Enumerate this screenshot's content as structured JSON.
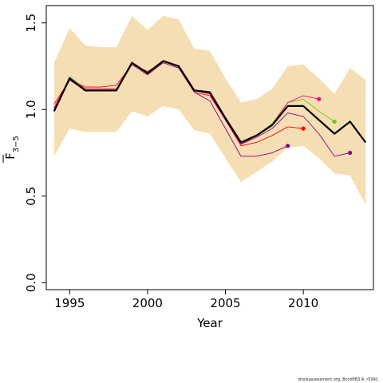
{
  "chart_data": {
    "type": "line",
    "xlabel": "Year",
    "ylabel_main": "F",
    "ylabel_sub": "3−5",
    "xlim": [
      1993.5,
      2014.5
    ],
    "ylim": [
      -0.04,
      1.6
    ],
    "x_ticks": [
      1995,
      2000,
      2005,
      2010
    ],
    "y_ticks": [
      0.0,
      0.5,
      1.0,
      1.5
    ],
    "y_tick_labels": [
      "0.0",
      "0.5",
      "1.0",
      "1.5"
    ],
    "grid": false,
    "colors": {
      "band": "#f5deb3",
      "main": "#000000",
      "peel_2012": "#66cc00",
      "peel_2011": "#ff0080",
      "peel_2010": "#ff0000",
      "peel_2009": "#800080",
      "peel_2013": "#8b008b"
    },
    "confidence_band": {
      "x": [
        1994,
        1995,
        1996,
        1997,
        1998,
        1999,
        2000,
        2001,
        2002,
        2003,
        2004,
        2005,
        2006,
        2007,
        2008,
        2009,
        2010,
        2011,
        2012,
        2013,
        2014
      ],
      "upper": [
        1.27,
        1.47,
        1.37,
        1.36,
        1.36,
        1.54,
        1.46,
        1.54,
        1.52,
        1.35,
        1.34,
        1.18,
        1.04,
        1.06,
        1.12,
        1.25,
        1.26,
        1.18,
        1.09,
        1.24,
        1.17
      ],
      "lower": [
        0.73,
        0.89,
        0.87,
        0.87,
        0.87,
        0.99,
        0.96,
        1.02,
        1.0,
        0.88,
        0.86,
        0.72,
        0.58,
        0.64,
        0.7,
        0.78,
        0.79,
        0.72,
        0.63,
        0.62,
        0.45
      ]
    },
    "series": [
      {
        "color_key": "main",
        "width": 2.2,
        "end_marker": false,
        "x": [
          1994,
          1995,
          1996,
          1997,
          1998,
          1999,
          2000,
          2001,
          2002,
          2003,
          2004,
          2005,
          2006,
          2007,
          2008,
          2009,
          2010,
          2011,
          2012,
          2013,
          2014
        ],
        "y": [
          0.99,
          1.18,
          1.11,
          1.11,
          1.11,
          1.27,
          1.21,
          1.28,
          1.25,
          1.11,
          1.1,
          0.95,
          0.81,
          0.85,
          0.91,
          1.02,
          1.02,
          0.94,
          0.86,
          0.93,
          0.81
        ]
      },
      {
        "color_key": "peel_2012",
        "width": 0.9,
        "end_marker": true,
        "x": [
          1994,
          1995,
          1996,
          1997,
          1998,
          1999,
          2000,
          2001,
          2002,
          2003,
          2004,
          2005,
          2006,
          2007,
          2008,
          2009,
          2010,
          2011,
          2012
        ],
        "y": [
          1.0,
          1.19,
          1.12,
          1.12,
          1.12,
          1.27,
          1.21,
          1.28,
          1.25,
          1.11,
          1.1,
          0.95,
          0.81,
          0.85,
          0.92,
          1.04,
          1.06,
          0.99,
          0.93
        ]
      },
      {
        "color_key": "peel_2011",
        "width": 0.9,
        "end_marker": true,
        "x": [
          1994,
          1995,
          1996,
          1997,
          1998,
          1999,
          2000,
          2001,
          2002,
          2003,
          2004,
          2005,
          2006,
          2007,
          2008,
          2009,
          2010,
          2011
        ],
        "y": [
          1.01,
          1.18,
          1.12,
          1.12,
          1.12,
          1.27,
          1.21,
          1.28,
          1.25,
          1.11,
          1.09,
          0.94,
          0.8,
          0.85,
          0.91,
          1.04,
          1.08,
          1.06
        ]
      },
      {
        "color_key": "peel_2010",
        "width": 0.9,
        "end_marker": true,
        "x": [
          1994,
          1995,
          1996,
          1997,
          1998,
          1999,
          2000,
          2001,
          2002,
          2003,
          2004,
          2005,
          2006,
          2007,
          2008,
          2009,
          2010
        ],
        "y": [
          1.03,
          1.17,
          1.13,
          1.13,
          1.14,
          1.26,
          1.22,
          1.27,
          1.24,
          1.1,
          1.08,
          0.94,
          0.79,
          0.81,
          0.85,
          0.9,
          0.89
        ]
      },
      {
        "color_key": "peel_2009",
        "width": 0.9,
        "end_marker": true,
        "x": [
          1994,
          1995,
          1996,
          1997,
          1998,
          1999,
          2000,
          2001,
          2002,
          2003,
          2004,
          2005,
          2006,
          2007,
          2008,
          2009
        ],
        "y": [
          1.0,
          1.17,
          1.11,
          1.11,
          1.11,
          1.26,
          1.2,
          1.27,
          1.24,
          1.1,
          1.05,
          0.89,
          0.73,
          0.73,
          0.75,
          0.79
        ]
      },
      {
        "color_key": "peel_2013",
        "width": 0.9,
        "end_marker": true,
        "x": [
          1994,
          1995,
          1996,
          1997,
          1998,
          1999,
          2000,
          2001,
          2002,
          2003,
          2004,
          2005,
          2006,
          2007,
          2008,
          2009,
          2010,
          2011,
          2012,
          2013
        ],
        "y": [
          0.99,
          1.18,
          1.11,
          1.11,
          1.11,
          1.27,
          1.21,
          1.28,
          1.25,
          1.11,
          1.09,
          0.94,
          0.8,
          0.84,
          0.89,
          0.98,
          0.96,
          0.86,
          0.73,
          0.75
        ]
      }
    ]
  },
  "footer": "stockassessment.org, BcodPB3.4, r5991"
}
